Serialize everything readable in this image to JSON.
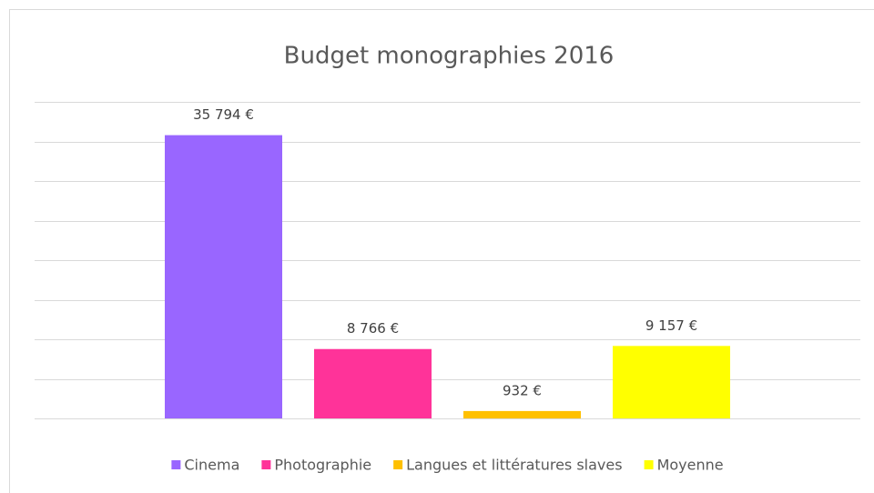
{
  "chart_data": {
    "type": "bar",
    "title": "Budget monographies 2016",
    "categories": [
      null
    ],
    "series": [
      {
        "name": "Cinema",
        "color": "#9966ff",
        "values": [
          35794
        ],
        "value_labels": [
          "35 794 €"
        ]
      },
      {
        "name": "Photographie",
        "color": "#ff3399",
        "values": [
          8766
        ],
        "value_labels": [
          "8 766 €"
        ]
      },
      {
        "name": "Langues et littératures slaves",
        "color": "#ffc000",
        "values": [
          932
        ],
        "value_labels": [
          "932 €"
        ]
      },
      {
        "name": "Moyenne",
        "color": "#ffff00",
        "values": [
          9157
        ],
        "value_labels": [
          "9 157 €"
        ]
      }
    ],
    "ylim": [
      0,
      40000
    ],
    "yticks": [
      0,
      5000,
      10000,
      15000,
      20000,
      25000,
      30000,
      35000,
      40000
    ],
    "grid": true,
    "legend": "bottom"
  }
}
